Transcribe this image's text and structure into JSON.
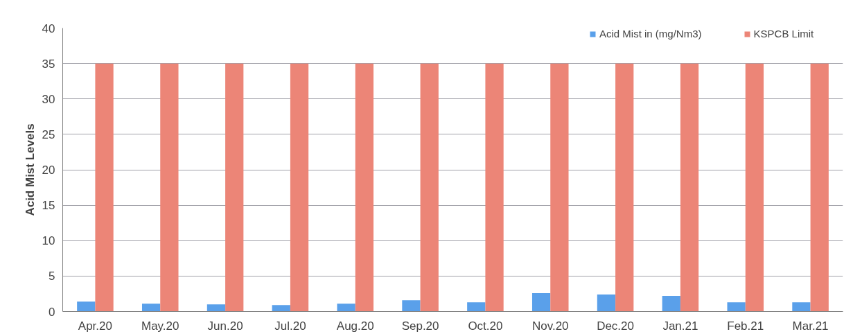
{
  "chart_data": {
    "type": "bar",
    "ylabel": "Acid Mist Levels",
    "categories": [
      "Apr.20",
      "May.20",
      "Jun.20",
      "Jul.20",
      "Aug.20",
      "Sep.20",
      "Oct.20",
      "Nov.20",
      "Dec.20",
      "Jan.21",
      "Feb.21",
      "Mar.21"
    ],
    "series": [
      {
        "name": "Acid Mist in (mg/Nm3)",
        "color": "#5aa0ea",
        "values": [
          1.4,
          1.1,
          1.0,
          0.9,
          1.1,
          1.6,
          1.3,
          2.6,
          2.4,
          2.2,
          1.3,
          1.3
        ]
      },
      {
        "name": "KSPCB Limit",
        "color": "#ec8577",
        "values": [
          35,
          35,
          35,
          35,
          35,
          35,
          35,
          35,
          35,
          35,
          35,
          35
        ]
      }
    ],
    "ylim": [
      0,
      40
    ],
    "yticks": [
      0,
      5,
      10,
      15,
      20,
      25,
      30,
      35,
      40
    ],
    "grid": "y",
    "legend": "top right"
  }
}
